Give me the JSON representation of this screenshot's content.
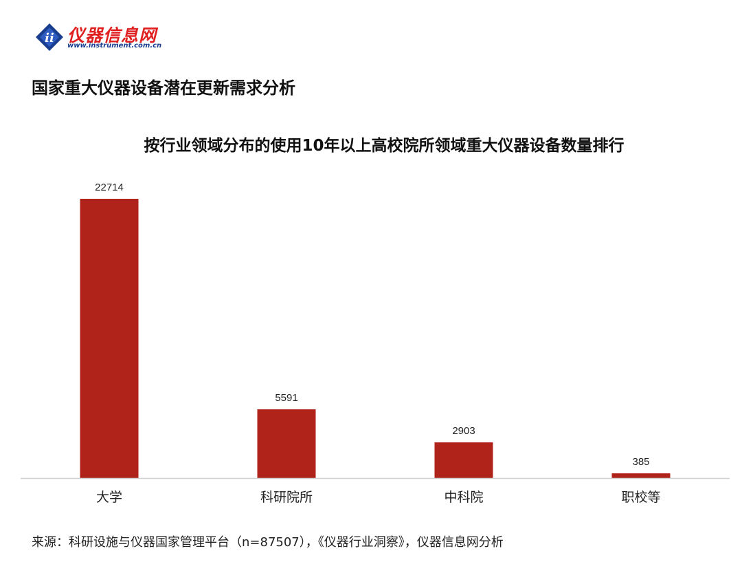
{
  "brand": {
    "name": "仪器信息网",
    "url": "www.instrument.com.cn",
    "logo_icon": "instrument-logo-icon",
    "logo_mark_text": "ii"
  },
  "page_title": "国家重大仪器设备潜在更新需求分析",
  "source_note": "来源：科研设施与仪器国家管理平台（n=87507），《仪器行业洞察》，仪器信息网分析",
  "colors": {
    "bar": "#b0231a",
    "axis": "#d0d0d0",
    "brand_red": "#e02020",
    "brand_blue": "#1a3d8f"
  },
  "chart_data": {
    "type": "bar",
    "title": "按行业领域分布的使用10年以上高校院所领域重大仪器设备数量排行",
    "categories": [
      "大学",
      "科研院所",
      "中科院",
      "职校等"
    ],
    "values": [
      22714,
      5591,
      2903,
      385
    ],
    "xlabel": "",
    "ylabel": "",
    "ylim": [
      0,
      22714
    ],
    "grid": false,
    "legend": "none",
    "data_labels": true
  }
}
